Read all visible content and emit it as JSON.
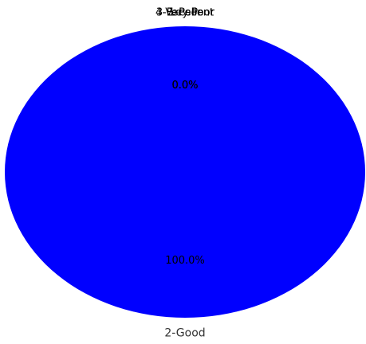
{
  "chart_data": {
    "type": "pie",
    "categories": [
      "2-Good",
      "3-Excellent",
      "4-Very Poor",
      "1-Poor"
    ],
    "values": [
      100.0,
      0.0,
      0.0,
      0.0
    ],
    "colors": [
      "#0000ff",
      "#ff7f0e",
      "#2ca02c",
      "#d62728"
    ],
    "percent_labels": [
      "100.0%",
      "0.0%",
      "0.0%",
      "0.0%"
    ],
    "title": "",
    "legend": "none"
  }
}
